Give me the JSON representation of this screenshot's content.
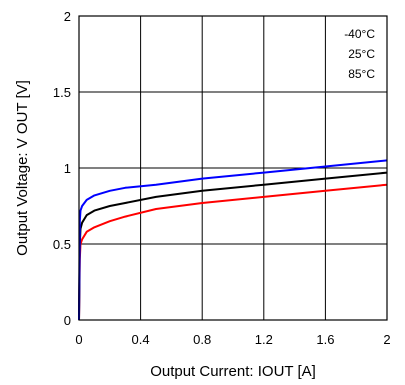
{
  "chart_data": {
    "type": "line",
    "xlabel": "Output Current: IOUT [A]",
    "ylabel": "Output Voltage: V OUT [V]",
    "xlim": [
      0,
      2
    ],
    "ylim": [
      0,
      2
    ],
    "x_ticks": [
      "0",
      "0.4",
      "0.8",
      "1.2",
      "1.6",
      "2"
    ],
    "y_ticks": [
      "0",
      "0.5",
      "1",
      "1.5",
      "2"
    ],
    "grid": true,
    "legend_position": "top-right",
    "series": [
      {
        "name": "-40°C",
        "color": "#ff0000",
        "x": [
          0,
          0.005,
          0.01,
          0.02,
          0.05,
          0.1,
          0.2,
          0.3,
          0.5,
          0.8,
          1.2,
          1.6,
          2.0
        ],
        "y": [
          0,
          0.4,
          0.5,
          0.53,
          0.58,
          0.61,
          0.65,
          0.68,
          0.73,
          0.77,
          0.81,
          0.85,
          0.89
        ]
      },
      {
        "name": "25°C",
        "color": "#000000",
        "x": [
          0,
          0.005,
          0.01,
          0.02,
          0.05,
          0.1,
          0.2,
          0.3,
          0.5,
          0.8,
          1.2,
          1.6,
          2.0
        ],
        "y": [
          0,
          0.5,
          0.6,
          0.64,
          0.69,
          0.72,
          0.75,
          0.77,
          0.81,
          0.85,
          0.89,
          0.93,
          0.97
        ]
      },
      {
        "name": "85°C",
        "color": "#0000ff",
        "x": [
          0,
          0.005,
          0.01,
          0.02,
          0.05,
          0.1,
          0.2,
          0.3,
          0.5,
          0.8,
          1.2,
          1.6,
          2.0
        ],
        "y": [
          0,
          0.65,
          0.72,
          0.75,
          0.79,
          0.82,
          0.85,
          0.87,
          0.89,
          0.93,
          0.97,
          1.01,
          1.05
        ]
      }
    ]
  }
}
